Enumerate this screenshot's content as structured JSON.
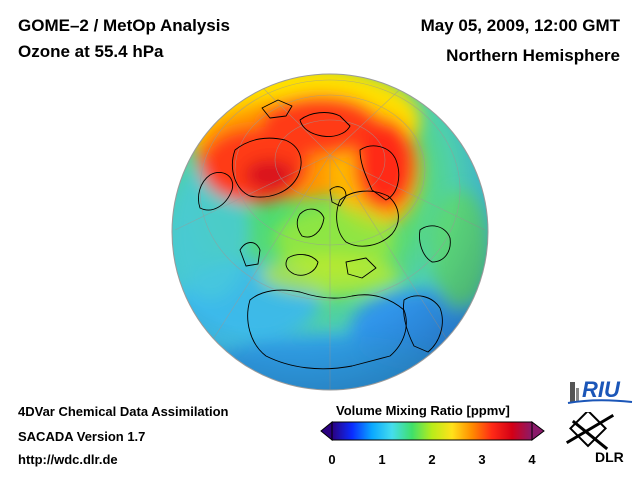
{
  "header": {
    "title_line1": "GOME–2 / MetOp Analysis",
    "title_line2": "Ozone at 55.4 hPa",
    "datetime": "May 05, 2009, 12:00 GMT",
    "region": "Northern Hemisphere"
  },
  "footer": {
    "method": "4DVar Chemical Data Assimilation",
    "version": "SACADA Version 1.7",
    "url": "http://wdc.dlr.de"
  },
  "colorbar": {
    "title": "Volume Mixing Ratio [ppmv]",
    "ticks": [
      "0",
      "1",
      "2",
      "3",
      "4"
    ],
    "colors": [
      "#2b0080",
      "#0a2cff",
      "#0aa8ff",
      "#44ddee",
      "#3fe06a",
      "#b8ec1a",
      "#ffe21a",
      "#ff8c00",
      "#ff2a16",
      "#d40016",
      "#8a1a6a"
    ]
  },
  "logos": {
    "riu": "RIU",
    "dlr": "DLR"
  },
  "colors": {
    "ocean_low": "#36b8ee",
    "high_ozone": "#ff2a16",
    "mid_green": "#46d96b",
    "yellow": "#ffe000",
    "coastline": "#000000"
  }
}
